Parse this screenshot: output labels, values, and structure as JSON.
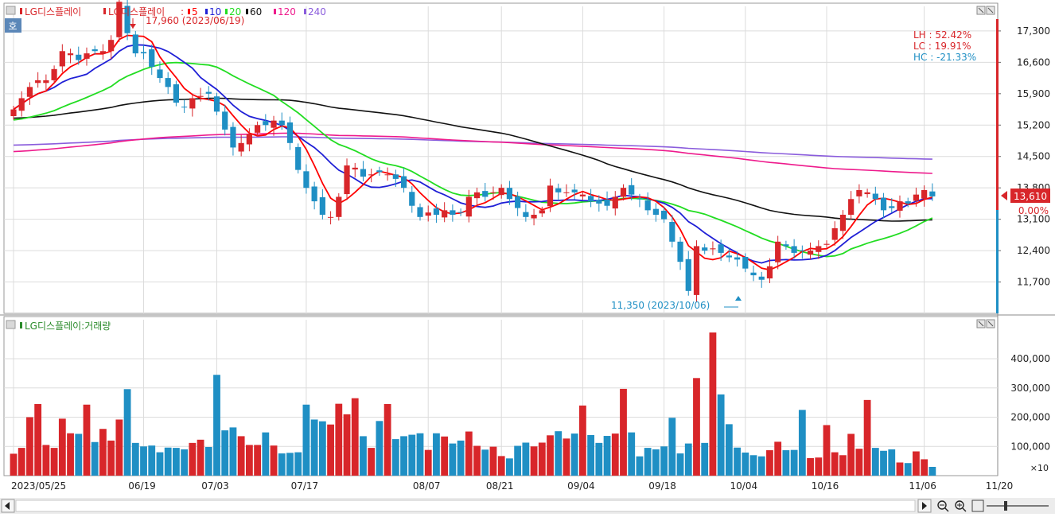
{
  "colors": {
    "up": "#d8262a",
    "down": "#1f8fc4",
    "ma5": "#ff0000",
    "ma10": "#1f1fd6",
    "ma20": "#22dd22",
    "ma60": "#111111",
    "ma120": "#ee1a8c",
    "ma240": "#8a5cdc",
    "grid": "#dcdcdc",
    "volume_label": "#2a8a2a"
  },
  "price_panel": {
    "legend": {
      "stock_name": "LG디스플레이",
      "ma_prefix": "LG디스플레이",
      "ma_periods": [
        "5",
        "10",
        "20",
        "60",
        "120",
        "240"
      ]
    },
    "y_ticks": [
      "17,300",
      "16,600",
      "15,900",
      "15,200",
      "14,500",
      "13,800",
      "13,100",
      "12,400",
      "11,700"
    ],
    "stats": {
      "lh": "LH :  52.42%",
      "lc": "LC :  19.91%",
      "hc": "HC : -21.33%"
    },
    "current_price": "13,610",
    "current_change": "0.00%",
    "high_annotation": "17,960 (2023/06/19)",
    "low_annotation": "11,350 (2023/10/06)",
    "corner_badge": "호"
  },
  "volume_panel": {
    "title": "LG디스플레이:거래량",
    "y_ticks": [
      "400,000",
      "300,000",
      "200,000",
      "100,000"
    ],
    "unit": "×10"
  },
  "x_axis_labels": [
    "2023/05/25",
    "06/19",
    "07/03",
    "07/17",
    "08/07",
    "08/21",
    "09/04",
    "09/18",
    "10/04",
    "10/16",
    "11/06",
    "11/20"
  ],
  "chart_data": {
    "type": "candlestick",
    "title": "LG디스플레이",
    "ylim": [
      11000,
      17600
    ],
    "volume_ylim": [
      0,
      490000
    ],
    "date_ticks": [
      "2023/05/25",
      "06/19",
      "07/03",
      "07/17",
      "08/07",
      "08/21",
      "09/04",
      "09/18",
      "10/04",
      "10/16",
      "11/06",
      "11/20"
    ],
    "close": [
      15550,
      15800,
      16050,
      16200,
      16200,
      16450,
      16850,
      16800,
      16650,
      16800,
      16850,
      16850,
      17100,
      17950,
      17250,
      16800,
      16800,
      16500,
      16250,
      16050,
      15700,
      15600,
      15800,
      15850,
      15900,
      15500,
      15100,
      14700,
      14800,
      15000,
      15200,
      15200,
      15300,
      15200,
      14800,
      14200,
      13800,
      13500,
      13200,
      13150,
      13600,
      14300,
      14250,
      14050,
      14100,
      14150,
      14100,
      14000,
      13800,
      13400,
      13150,
      13250,
      13200,
      13300,
      13200,
      13250,
      13600,
      13700,
      13600,
      13700,
      13800,
      13550,
      13350,
      13150,
      13200,
      13300,
      13850,
      13700,
      13700,
      13700,
      13650,
      13500,
      13450,
      13400,
      13600,
      13800,
      13650,
      13550,
      13300,
      13200,
      13100,
      12600,
      12150,
      11500,
      12500,
      12400,
      12450,
      12350,
      12250,
      12200,
      12000,
      11850,
      11750,
      12050,
      12600,
      12500,
      12350,
      12400,
      12400,
      12500,
      12550,
      12900,
      13200,
      13550,
      13750,
      13700,
      13550,
      13300,
      13350,
      13500,
      13450,
      13650,
      13750,
      13610
    ],
    "volume": [
      75000,
      95000,
      200000,
      245000,
      105000,
      95000,
      195000,
      145000,
      143000,
      243000,
      115000,
      160000,
      120000,
      192000,
      296000,
      112000,
      100000,
      103000,
      80000,
      96000,
      95000,
      90000,
      112000,
      123000,
      98000,
      345000,
      155000,
      165000,
      135000,
      105000,
      105000,
      148000,
      103000,
      76000,
      78000,
      80000,
      243000,
      192000,
      186000,
      175000,
      246000,
      210000,
      265000,
      135000,
      95000,
      187000,
      245000,
      125000,
      135000,
      140000,
      145000,
      88000,
      145000,
      134000,
      110000,
      120000,
      151000,
      102000,
      89000,
      99000,
      67000,
      59000,
      102000,
      113000,
      100000,
      113000,
      138000,
      152000,
      127000,
      144000,
      240000,
      139000,
      112000,
      136000,
      144000,
      297000,
      148000,
      66000,
      95000,
      90000,
      100000,
      198000,
      76000,
      110000,
      334000,
      112000,
      490000,
      278000,
      176000,
      96000,
      79000,
      70000,
      66000,
      87000,
      116000,
      87000,
      88000,
      225000,
      60000,
      62000,
      173000,
      80000,
      70000,
      143000,
      92000,
      259000,
      95000,
      85000,
      90000,
      45000,
      43000,
      83000,
      56000,
      30000
    ]
  }
}
